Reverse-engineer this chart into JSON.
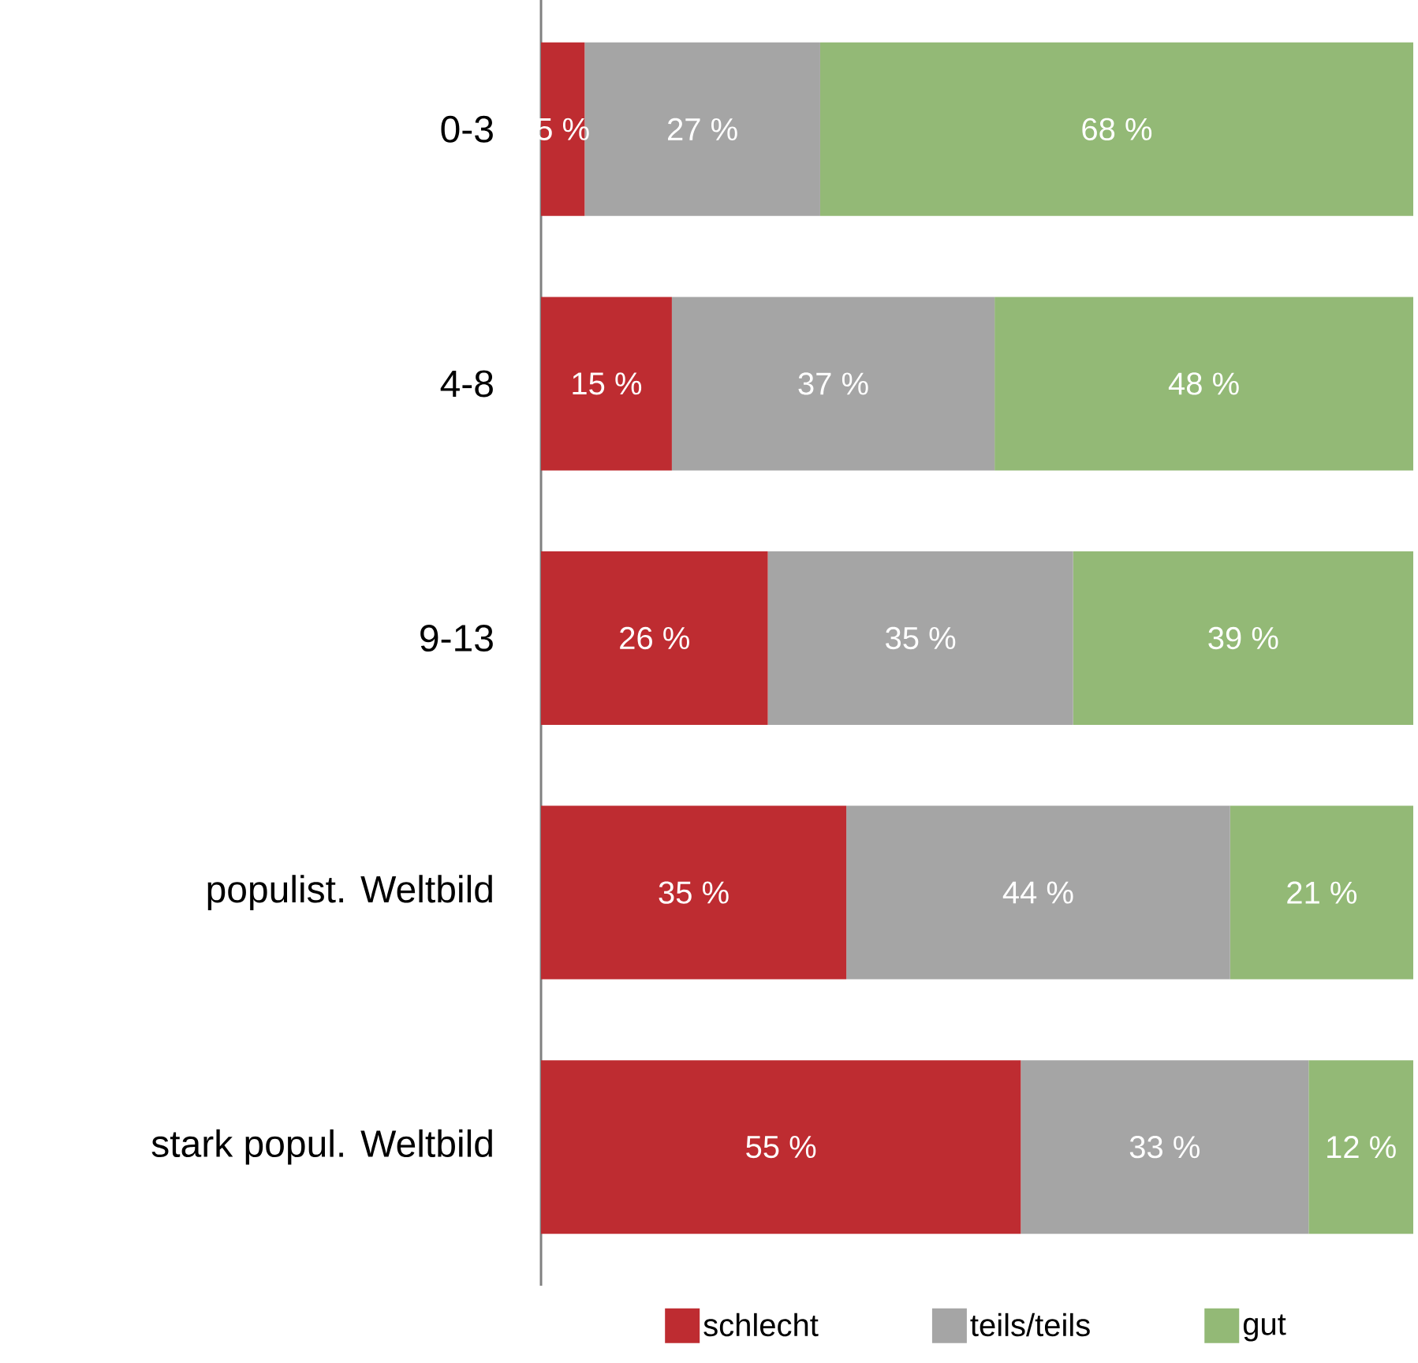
{
  "chart_data": {
    "type": "bar",
    "orientation": "horizontal",
    "stacked": true,
    "categories": [
      "0-3",
      "4-8",
      "9-13",
      "populist. Weltbild",
      "stark popul. Weltbild"
    ],
    "xlim": [
      0,
      100
    ],
    "tick_labels": "y",
    "legend": "bottom",
    "series": [
      {
        "name": "schlecht",
        "color": "#be2c31",
        "values": [
          5,
          15,
          26,
          35,
          55
        ],
        "value_labels": [
          "5 %",
          "15 %",
          "26 %",
          "35 %",
          "55 %"
        ]
      },
      {
        "name": "teils/teils",
        "color": "#a5a5a5",
        "values": [
          27,
          37,
          35,
          44,
          33
        ],
        "value_labels": [
          "27 %",
          "37 %",
          "35 %",
          "44 %",
          "33 %"
        ]
      },
      {
        "name": "gut",
        "color": "#93b976",
        "values": [
          68,
          48,
          39,
          21,
          12
        ],
        "value_labels": [
          "68 %",
          "48 %",
          "39 %",
          "21 %",
          "12 %"
        ]
      }
    ]
  }
}
